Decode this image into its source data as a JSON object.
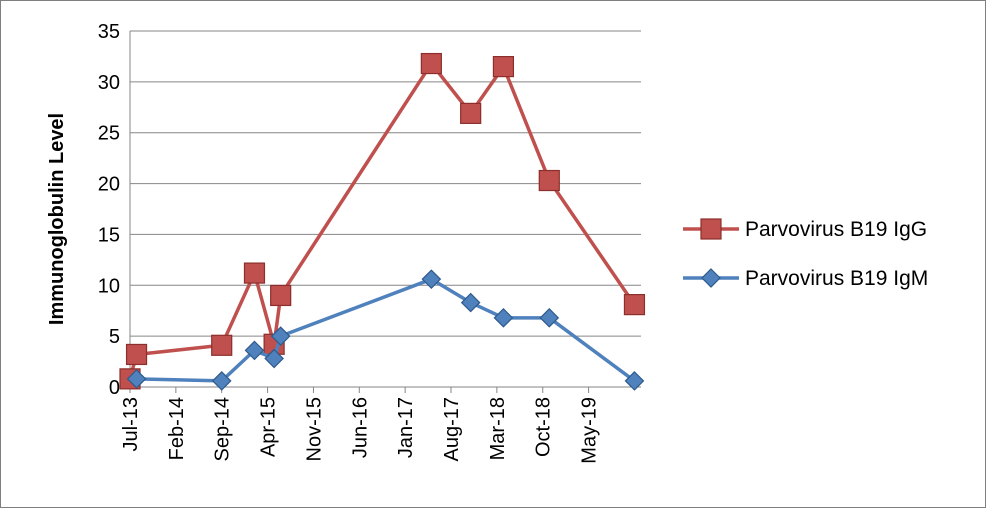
{
  "chart_data": {
    "type": "line",
    "title": "",
    "xlabel": "",
    "ylabel": "Immunoglobulin Level",
    "ylim": [
      0,
      35
    ],
    "yticks": [
      0,
      5,
      10,
      15,
      20,
      25,
      30,
      35
    ],
    "x_tick_labels": [
      "Jul-13",
      "Feb-14",
      "Sep-14",
      "Apr-15",
      "Nov-15",
      "Jun-16",
      "Jan-17",
      "Aug-17",
      "Mar-18",
      "Oct-18",
      "May-19"
    ],
    "xlim": [
      "2013-07",
      "2020-01"
    ],
    "grid": "horizontal",
    "legend_position": "right",
    "series": [
      {
        "name": "Parvovirus B19 IgG",
        "color": "#C0504D",
        "marker": "square",
        "points": [
          {
            "x": "2013-07",
            "y": 0.8
          },
          {
            "x": "2013-08",
            "y": 3.2
          },
          {
            "x": "2014-09",
            "y": 4.1
          },
          {
            "x": "2015-02",
            "y": 11.2
          },
          {
            "x": "2015-05",
            "y": 4.2
          },
          {
            "x": "2015-06",
            "y": 9.0
          },
          {
            "x": "2017-05",
            "y": 31.8
          },
          {
            "x": "2017-11",
            "y": 26.9
          },
          {
            "x": "2018-04",
            "y": 31.5
          },
          {
            "x": "2018-11",
            "y": 20.3
          },
          {
            "x": "2019-12",
            "y": 8.1
          }
        ]
      },
      {
        "name": "Parvovirus B19 IgM",
        "color": "#4F81BD",
        "marker": "diamond",
        "points": [
          {
            "x": "2013-08",
            "y": 0.8
          },
          {
            "x": "2014-09",
            "y": 0.6
          },
          {
            "x": "2015-02",
            "y": 3.6
          },
          {
            "x": "2015-05",
            "y": 2.8
          },
          {
            "x": "2015-06",
            "y": 5.0
          },
          {
            "x": "2017-05",
            "y": 10.6
          },
          {
            "x": "2017-11",
            "y": 8.3
          },
          {
            "x": "2018-04",
            "y": 6.8
          },
          {
            "x": "2018-11",
            "y": 6.8
          },
          {
            "x": "2019-12",
            "y": 0.6
          }
        ]
      }
    ]
  }
}
